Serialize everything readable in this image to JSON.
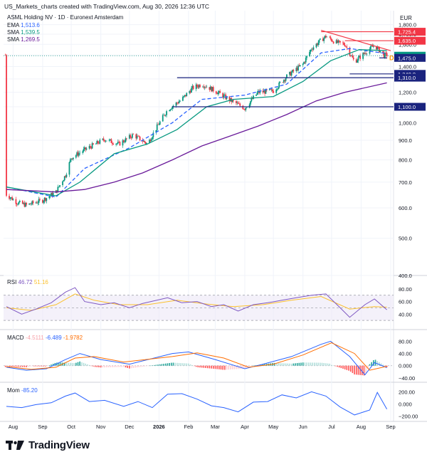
{
  "header": {
    "caption": "US_Markets_charts created with TradingView.com, Aug 30, 2026 12:36 UTC"
  },
  "legend": {
    "symbol": "ASML Holding NV · 1D · Euronext Amsterdam",
    "indicators": [
      {
        "name": "EMA",
        "value": "1,513.6",
        "color": "#2962ff"
      },
      {
        "name": "SMA",
        "value": "1,539.5",
        "color": "#089981"
      },
      {
        "name": "SMA",
        "value": "1,269.5",
        "color": "#6a1b9a"
      }
    ]
  },
  "footer": {
    "brand": "TradingView"
  },
  "chart_data": [
    {
      "type": "candlestick",
      "panel": "price",
      "currency": "EUR",
      "scale": "log",
      "ylim": [
        400,
        1900
      ],
      "y_ticks": [
        "1,800.0",
        "1,700.0",
        "1,600.0",
        "1,500.0",
        "1,400.0",
        "1,300.0",
        "1,200.0",
        "1,100.0",
        "1,000.0",
        "900.0",
        "800.0",
        "700.0",
        "600.0",
        "500.0",
        "400.0"
      ],
      "x_ticks": [
        "Aug",
        "Sep",
        "Oct",
        "Nov",
        "Dec",
        "2026",
        "Feb",
        "Mar",
        "Apr",
        "May",
        "Jun",
        "Jul",
        "Aug",
        "Sep"
      ],
      "price_path": [
        [
          "2025-07-25",
          650
        ],
        [
          "2025-08-05",
          620
        ],
        [
          "2025-08-15",
          610
        ],
        [
          "2025-09-01",
          628
        ],
        [
          "2025-09-15",
          660
        ],
        [
          "2025-09-25",
          730
        ],
        [
          "2025-10-01",
          810
        ],
        [
          "2025-10-15",
          850
        ],
        [
          "2025-11-05",
          905
        ],
        [
          "2025-11-20",
          880
        ],
        [
          "2025-12-05",
          930
        ],
        [
          "2025-12-20",
          880
        ],
        [
          "2026-01-10",
          1080
        ],
        [
          "2026-01-25",
          1150
        ],
        [
          "2026-02-05",
          1230
        ],
        [
          "2026-02-15",
          1260
        ],
        [
          "2026-03-01",
          1210
        ],
        [
          "2026-03-15",
          1150
        ],
        [
          "2026-04-01",
          1090
        ],
        [
          "2026-04-15",
          1200
        ],
        [
          "2026-05-01",
          1210
        ],
        [
          "2026-05-15",
          1320
        ],
        [
          "2026-06-01",
          1420
        ],
        [
          "2026-06-10",
          1560
        ],
        [
          "2026-06-25",
          1680
        ],
        [
          "2026-07-05",
          1620
        ],
        [
          "2026-07-15",
          1600
        ],
        [
          "2026-07-25",
          1440
        ],
        [
          "2026-08-05",
          1520
        ],
        [
          "2026-08-15",
          1590
        ],
        [
          "2026-08-25",
          1500
        ]
      ],
      "series": [
        {
          "name": "EMA",
          "color": "#2962ff",
          "style": "dashed",
          "points": [
            [
              "2025-07-25",
              680
            ],
            [
              "2025-09-15",
              640
            ],
            [
              "2025-10-15",
              760
            ],
            [
              "2025-12-01",
              860
            ],
            [
              "2026-01-15",
              1000
            ],
            [
              "2026-02-15",
              1150
            ],
            [
              "2026-04-01",
              1180
            ],
            [
              "2026-05-15",
              1260
            ],
            [
              "2026-06-20",
              1520
            ],
            [
              "2026-07-20",
              1560
            ],
            [
              "2026-08-28",
              1514
            ]
          ]
        },
        {
          "name": "SMA",
          "color": "#089981",
          "style": "solid",
          "points": [
            [
              "2025-07-25",
              680
            ],
            [
              "2025-09-15",
              645
            ],
            [
              "2025-10-10",
              700
            ],
            [
              "2025-11-15",
              830
            ],
            [
              "2025-12-20",
              880
            ],
            [
              "2026-01-20",
              960
            ],
            [
              "2026-02-20",
              1100
            ],
            [
              "2026-03-20",
              1150
            ],
            [
              "2026-05-01",
              1170
            ],
            [
              "2026-06-01",
              1280
            ],
            [
              "2026-06-30",
              1450
            ],
            [
              "2026-07-30",
              1550
            ],
            [
              "2026-08-28",
              1540
            ]
          ]
        },
        {
          "name": "SMA",
          "color": "#6a1b9a",
          "style": "solid",
          "points": [
            [
              "2025-07-25",
              670
            ],
            [
              "2025-09-15",
              660
            ],
            [
              "2025-10-15",
              670
            ],
            [
              "2025-11-15",
              700
            ],
            [
              "2025-12-15",
              740
            ],
            [
              "2026-01-15",
              800
            ],
            [
              "2026-02-15",
              870
            ],
            [
              "2026-03-15",
              920
            ],
            [
              "2026-04-15",
              980
            ],
            [
              "2026-05-15",
              1050
            ],
            [
              "2026-06-15",
              1140
            ],
            [
              "2026-07-15",
              1200
            ],
            [
              "2026-08-28",
              1270
            ]
          ]
        }
      ],
      "levels": [
        {
          "label": "1,725.4",
          "value": 1725.4,
          "color": "#f23645",
          "from": "2026-06-20"
        },
        {
          "label": "1,635.0",
          "value": 1635.0,
          "color": "#f23645",
          "from": "2026-07-15"
        },
        {
          "label": "1,340.0",
          "value": 1340.0,
          "color": "#1a237e",
          "from": "2026-07-20"
        },
        {
          "label": "1,310.0",
          "value": 1310.0,
          "color": "#1a237e",
          "from": "2026-01-20"
        },
        {
          "label": "1,100.0",
          "value": 1100.0,
          "color": "#1a237e",
          "from": "2026-01-15"
        }
      ],
      "trendline": {
        "color": "#f23645",
        "from": [
          "2026-06-20",
          1740
        ],
        "to": [
          "2026-09-01",
          1540
        ]
      },
      "support_segment": {
        "value": 1475,
        "from": "2026-08-20",
        "to": "2026-08-28"
      },
      "price_labels": [
        {
          "label": "1,494.4",
          "value": 1494.4,
          "color": "#089981"
        },
        {
          "label": "1,475.0",
          "value": 1475.0,
          "color": "#1a237e"
        }
      ],
      "marker": {
        "label": "D",
        "value": 1475,
        "date": "2026-08-29",
        "color": "#ff9800"
      }
    },
    {
      "type": "line",
      "panel": "rsi",
      "name": "RSI",
      "legend_values": [
        "46.72",
        "51.16"
      ],
      "series": [
        {
          "name": "RSI",
          "color": "#7e57c2",
          "points": [
            [
              "2025-07-25",
              52
            ],
            [
              "2025-08-10",
              40
            ],
            [
              "2025-08-25",
              48
            ],
            [
              "2025-09-10",
              58
            ],
            [
              "2025-09-25",
              75
            ],
            [
              "2025-10-05",
              82
            ],
            [
              "2025-10-15",
              60
            ],
            [
              "2025-11-01",
              55
            ],
            [
              "2025-11-15",
              58
            ],
            [
              "2025-12-01",
              50
            ],
            [
              "2025-12-15",
              57
            ],
            [
              "2026-01-10",
              66
            ],
            [
              "2026-01-25",
              58
            ],
            [
              "2026-02-10",
              60
            ],
            [
              "2026-02-25",
              52
            ],
            [
              "2026-03-10",
              55
            ],
            [
              "2026-03-25",
              45
            ],
            [
              "2026-04-10",
              55
            ],
            [
              "2026-04-25",
              58
            ],
            [
              "2026-05-10",
              62
            ],
            [
              "2026-05-25",
              66
            ],
            [
              "2026-06-10",
              70
            ],
            [
              "2026-06-25",
              72
            ],
            [
              "2026-07-10",
              50
            ],
            [
              "2026-07-20",
              35
            ],
            [
              "2026-08-05",
              55
            ],
            [
              "2026-08-15",
              64
            ],
            [
              "2026-08-28",
              47
            ]
          ]
        },
        {
          "name": "RSI MA",
          "color": "#fbc02d",
          "points": [
            [
              "2025-07-25",
              50
            ],
            [
              "2025-08-20",
              46
            ],
            [
              "2025-09-15",
              55
            ],
            [
              "2025-10-05",
              72
            ],
            [
              "2025-10-25",
              62
            ],
            [
              "2025-11-20",
              55
            ],
            [
              "2025-12-20",
              55
            ],
            [
              "2026-01-20",
              62
            ],
            [
              "2026-02-20",
              56
            ],
            [
              "2026-03-20",
              52
            ],
            [
              "2026-04-20",
              55
            ],
            [
              "2026-05-20",
              62
            ],
            [
              "2026-06-20",
              68
            ],
            [
              "2026-07-20",
              48
            ],
            [
              "2026-08-15",
              52
            ],
            [
              "2026-08-28",
              51
            ]
          ]
        }
      ],
      "ylim": [
        20,
        90
      ],
      "band": [
        30,
        70
      ],
      "y_ticks": [
        "80.00",
        "60.00",
        "40.00"
      ]
    },
    {
      "type": "line",
      "panel": "macd",
      "name": "MACD",
      "legend_values": [
        "-4.5111",
        "-6.489",
        "-1.9782"
      ],
      "series": [
        {
          "name": "MACD",
          "color": "#2962ff",
          "points": [
            [
              "2025-07-25",
              -5
            ],
            [
              "2025-08-15",
              -15
            ],
            [
              "2025-09-05",
              -10
            ],
            [
              "2025-09-25",
              20
            ],
            [
              "2025-10-10",
              40
            ],
            [
              "2025-11-01",
              20
            ],
            [
              "2025-12-01",
              5
            ],
            [
              "2026-01-15",
              40
            ],
            [
              "2026-02-01",
              45
            ],
            [
              "2026-03-01",
              20
            ],
            [
              "2026-04-01",
              -10
            ],
            [
              "2026-04-20",
              5
            ],
            [
              "2026-05-20",
              30
            ],
            [
              "2026-06-20",
              70
            ],
            [
              "2026-06-30",
              80
            ],
            [
              "2026-07-20",
              30
            ],
            [
              "2026-08-05",
              -30
            ],
            [
              "2026-08-15",
              10
            ],
            [
              "2026-08-28",
              -6.5
            ]
          ]
        },
        {
          "name": "Signal",
          "color": "#ff6d00",
          "points": [
            [
              "2025-07-25",
              -3
            ],
            [
              "2025-08-20",
              -12
            ],
            [
              "2025-09-15",
              -5
            ],
            [
              "2025-10-05",
              25
            ],
            [
              "2025-10-25",
              30
            ],
            [
              "2025-11-25",
              12
            ],
            [
              "2026-01-15",
              30
            ],
            [
              "2026-02-10",
              42
            ],
            [
              "2026-03-10",
              25
            ],
            [
              "2026-04-05",
              -5
            ],
            [
              "2026-05-01",
              5
            ],
            [
              "2026-06-01",
              35
            ],
            [
              "2026-07-01",
              75
            ],
            [
              "2026-07-25",
              40
            ],
            [
              "2026-08-10",
              -15
            ],
            [
              "2026-08-28",
              -2
            ]
          ]
        }
      ],
      "ylim": [
        -45,
        95
      ],
      "y_ticks": [
        "80.00",
        "40.00",
        "0.000",
        "−40.00"
      ]
    },
    {
      "type": "line",
      "panel": "momentum",
      "name": "Mom",
      "legend_values": [
        "-85.20"
      ],
      "series": [
        {
          "name": "Mom",
          "color": "#2962ff",
          "points": [
            [
              "2025-07-25",
              -40
            ],
            [
              "2025-08-10",
              -60
            ],
            [
              "2025-08-25",
              -10
            ],
            [
              "2025-09-10",
              20
            ],
            [
              "2025-09-25",
              130
            ],
            [
              "2025-10-05",
              180
            ],
            [
              "2025-10-20",
              40
            ],
            [
              "2025-11-05",
              60
            ],
            [
              "2025-11-25",
              -40
            ],
            [
              "2025-12-10",
              40
            ],
            [
              "2025-12-25",
              -60
            ],
            [
              "2026-01-10",
              160
            ],
            [
              "2026-01-25",
              170
            ],
            [
              "2026-02-10",
              80
            ],
            [
              "2026-02-25",
              -30
            ],
            [
              "2026-03-10",
              -60
            ],
            [
              "2026-03-25",
              -130
            ],
            [
              "2026-04-10",
              30
            ],
            [
              "2026-04-25",
              40
            ],
            [
              "2026-05-10",
              150
            ],
            [
              "2026-05-25",
              100
            ],
            [
              "2026-06-10",
              200
            ],
            [
              "2026-06-25",
              130
            ],
            [
              "2026-07-10",
              -50
            ],
            [
              "2026-07-25",
              -180
            ],
            [
              "2026-08-10",
              -100
            ],
            [
              "2026-08-18",
              190
            ],
            [
              "2026-08-28",
              -85
            ]
          ]
        }
      ],
      "ylim": [
        -240,
        240
      ],
      "y_ticks": [
        "200.00",
        "0.000",
        "−200.00"
      ]
    }
  ]
}
